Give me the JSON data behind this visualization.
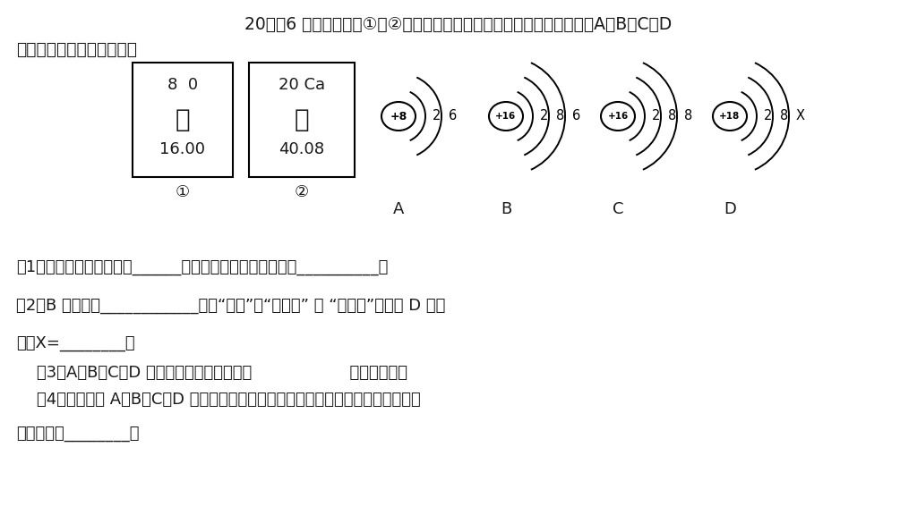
{
  "title_line1": "20．（6 分）下图中的①、②是氧元素、馒元素在元素周期表中的信息，A、B、C、D",
  "title_line2": "是四种粒子的结构示意图。",
  "box1_top": "8  0",
  "box1_mid": "氧",
  "box1_bot": "16.00",
  "box1_label": "①",
  "box2_top": "20 Ca",
  "box2_mid": "馒",
  "box2_bot": "40.08",
  "box2_label": "②",
  "atoms": [
    {
      "nucleus": "+8",
      "shells": [
        "2",
        "6"
      ],
      "label": "A"
    },
    {
      "nucleus": "+16",
      "shells": [
        "2",
        "8",
        "6"
      ],
      "label": "B"
    },
    {
      "nucleus": "+16",
      "shells": [
        "2",
        "8",
        "8"
      ],
      "label": "C"
    },
    {
      "nucleus": "+18",
      "shells": [
        "2",
        "8",
        "X"
      ],
      "label": "D"
    }
  ],
  "q1": "（1）氧元素的原子序数为______，馒元素的相对原子质量为__________；",
  "q2a": "（2）B 粒子属于____________（填“原子”、“阴离子” 或 “阳离子”）；若 D 为原",
  "q2b": "子，X=________。",
  "q3": "    （3）A、B、C、D 中属于同种元素的粒子是                   （填序号）。",
  "q4": "    （4）馒元素与 A、B、C、D 四种离子中的其中一种元素形成的化合物可做干燥剂，",
  "q5": "其化学式是________。",
  "bg_color": "#ffffff",
  "text_color": "#1a1a1a"
}
